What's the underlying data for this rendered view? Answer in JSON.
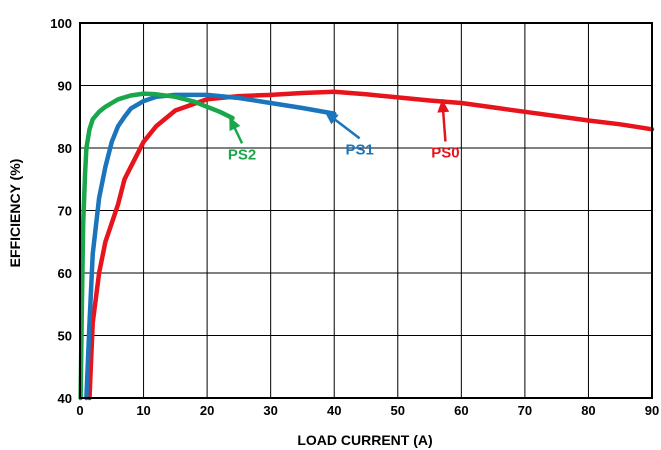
{
  "chart_data": {
    "type": "line",
    "title": "",
    "xlabel": "LOAD CURRENT (A)",
    "ylabel": "EFFICIENCY (%)",
    "xlim": [
      0,
      90
    ],
    "ylim": [
      40,
      100
    ],
    "xticks": [
      "0",
      "10",
      "20",
      "30",
      "40",
      "50",
      "60",
      "70",
      "80",
      "90"
    ],
    "yticks": [
      "40",
      "50",
      "60",
      "70",
      "80",
      "90",
      "100"
    ],
    "grid": true,
    "series": [
      {
        "name": "PS0",
        "color": "#e8141c",
        "x": [
          1.5,
          2,
          3,
          4,
          5,
          6,
          7,
          8,
          10,
          12,
          15,
          20,
          25,
          30,
          35,
          40,
          45,
          50,
          55,
          60,
          65,
          70,
          75,
          80,
          85,
          90
        ],
        "y": [
          40,
          52,
          60,
          65,
          68,
          71,
          75,
          77,
          81,
          83.5,
          86,
          87.8,
          88.3,
          88.5,
          88.8,
          89,
          88.6,
          88.1,
          87.6,
          87.2,
          86.5,
          85.8,
          85.1,
          84.4,
          83.8,
          83
        ]
      },
      {
        "name": "PS1",
        "color": "#1b75bc",
        "x": [
          1,
          1.5,
          2,
          3,
          4,
          5,
          6,
          7,
          8,
          10,
          12,
          15,
          20,
          25,
          30,
          35,
          40
        ],
        "y": [
          40,
          52,
          63,
          72,
          77,
          81,
          83.5,
          85,
          86.3,
          87.5,
          88.2,
          88.5,
          88.5,
          88,
          87.2,
          86.4,
          85.5
        ]
      },
      {
        "name": "PS2",
        "color": "#1aa64a",
        "x": [
          0.1,
          0.3,
          0.5,
          0.8,
          1,
          1.5,
          2,
          3,
          4,
          5,
          6,
          8,
          10,
          12,
          15,
          18,
          20,
          22,
          24
        ],
        "y": [
          40,
          55,
          68,
          76,
          80,
          83,
          84.6,
          85.8,
          86.6,
          87.2,
          87.8,
          88.4,
          88.7,
          88.6,
          88.2,
          87.4,
          86.6,
          85.8,
          84.8
        ]
      }
    ],
    "annotations": [
      {
        "text": "PS2",
        "series": "PS2",
        "label_x": 25.5,
        "label_y": 78.5,
        "arrow_x": 23.5,
        "arrow_y": 85
      },
      {
        "text": "PS1",
        "series": "PS1",
        "label_x": 44,
        "label_y": 79.3,
        "arrow_x": 38.5,
        "arrow_y": 85.8
      },
      {
        "text": "PS0",
        "series": "PS0",
        "label_x": 57.5,
        "label_y": 78.8,
        "arrow_x": 57,
        "arrow_y": 87.8
      }
    ]
  }
}
